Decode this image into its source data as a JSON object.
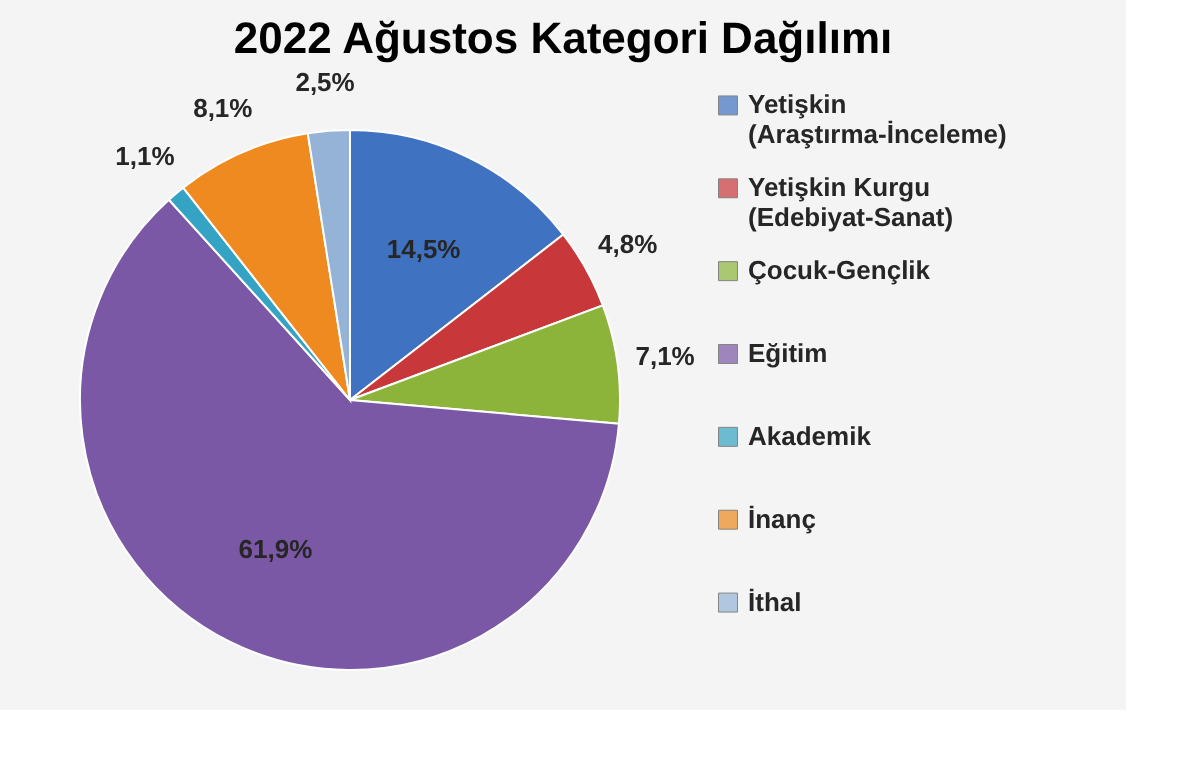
{
  "chart_data": {
    "type": "pie",
    "title": "2022 Ağustos Kategori Dağılımı",
    "categories": [
      "Yetişkin\n(Araştırma-İnceleme)",
      "Yetişkin Kurgu\n(Edebiyat-Sanat)",
      "Çocuk-Gençlik",
      "Eğitim",
      "Akademik",
      "İnanç",
      "İthal"
    ],
    "values": [
      14.5,
      4.8,
      7.1,
      61.9,
      1.1,
      8.1,
      2.5
    ],
    "value_labels": [
      "14,5%",
      "4,8%",
      "7,1%",
      "61,9%",
      "1,1%",
      "8,1%",
      "2,5%"
    ],
    "colors": [
      "#3f72c0",
      "#c8383a",
      "#8cb43a",
      "#7b58a6",
      "#35a3c3",
      "#ee8a1f",
      "#95b3d7"
    ],
    "legend": "right"
  }
}
